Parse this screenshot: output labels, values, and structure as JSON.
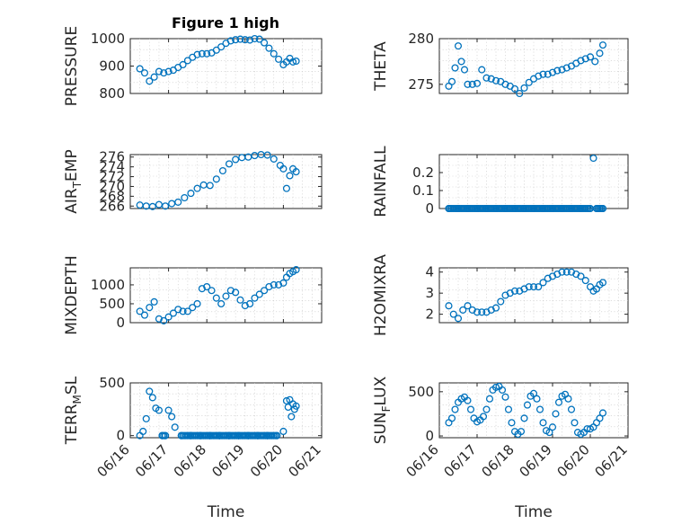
{
  "figure": {
    "title": "Figure 1 high"
  },
  "colors": {
    "marker": "#0072BD",
    "axis": "#262626",
    "grid": "#c9c9c9",
    "background": "#ffffff"
  },
  "chart_data": [
    {
      "type": "scatter",
      "title": "Figure 1 high",
      "ylabel": "PRESSURE",
      "xlabel": "",
      "xlim": [
        "06/16",
        "06/21"
      ],
      "ylim": [
        800,
        1000
      ],
      "yticks": [
        "800",
        "900",
        "1000"
      ],
      "xticks": [],
      "grid": true,
      "series": [
        {
          "x": [
            "06/16 06:00",
            "06/16 09:00",
            "06/16 12:00",
            "06/16 15:00",
            "06/16 18:00",
            "06/16 21:00",
            "06/17 00:00",
            "06/17 03:00",
            "06/17 06:00",
            "06/17 09:00",
            "06/17 12:00",
            "06/17 15:00",
            "06/17 18:00",
            "06/17 21:00",
            "06/18 00:00",
            "06/18 03:00",
            "06/18 06:00",
            "06/18 09:00",
            "06/18 12:00",
            "06/18 15:00",
            "06/18 18:00",
            "06/18 21:00",
            "06/19 00:00",
            "06/19 03:00",
            "06/19 06:00",
            "06/19 09:00",
            "06/19 12:00",
            "06/19 15:00",
            "06/19 18:00",
            "06/19 21:00",
            "06/20 00:00",
            "06/20 02:00",
            "06/20 04:00",
            "06/20 06:00",
            "06/20 08:00"
          ],
          "y": [
            890,
            875,
            845,
            860,
            880,
            875,
            880,
            885,
            895,
            905,
            920,
            932,
            942,
            945,
            945,
            948,
            958,
            970,
            983,
            992,
            996,
            998,
            996,
            995,
            1000,
            998,
            985,
            965,
            945,
            925,
            905,
            915,
            928,
            915,
            918
          ]
        }
      ]
    },
    {
      "type": "scatter",
      "ylabel": "THETA",
      "xlabel": "",
      "xlim": [
        "06/16",
        "06/21"
      ],
      "ylim": [
        274,
        280
      ],
      "yticks": [
        "275",
        "280"
      ],
      "xticks": [],
      "grid": true,
      "series": [
        {
          "x": [
            "06/16 06:00",
            "06/16 08:00",
            "06/16 10:00",
            "06/16 12:00",
            "06/16 14:00",
            "06/16 16:00",
            "06/16 18:00",
            "06/16 21:00",
            "06/17 00:00",
            "06/17 03:00",
            "06/17 06:00",
            "06/17 09:00",
            "06/17 12:00",
            "06/17 15:00",
            "06/17 18:00",
            "06/17 21:00",
            "06/18 00:00",
            "06/18 03:00",
            "06/18 06:00",
            "06/18 09:00",
            "06/18 12:00",
            "06/18 15:00",
            "06/18 18:00",
            "06/18 21:00",
            "06/19 00:00",
            "06/19 03:00",
            "06/19 06:00",
            "06/19 09:00",
            "06/19 12:00",
            "06/19 15:00",
            "06/19 18:00",
            "06/19 21:00",
            "06/20 00:00",
            "06/20 03:00",
            "06/20 06:00",
            "06/20 08:00"
          ],
          "y": [
            274.8,
            275.3,
            276.8,
            279.2,
            277.5,
            276.6,
            275.0,
            275.0,
            275.1,
            276.6,
            275.7,
            275.6,
            275.4,
            275.3,
            275.0,
            274.8,
            274.5,
            274.0,
            274.6,
            275.2,
            275.6,
            275.9,
            276.1,
            276.1,
            276.3,
            276.5,
            276.6,
            276.8,
            277.0,
            277.3,
            277.6,
            277.8,
            278.0,
            277.5,
            278.4,
            279.3
          ]
        }
      ]
    },
    {
      "type": "scatter",
      "ylabel": "AIR_TEMP",
      "xlabel": "",
      "xlim": [
        "06/16",
        "06/21"
      ],
      "ylim": [
        265.5,
        276.5
      ],
      "yticks": [
        "266",
        "268",
        "270",
        "272",
        "274",
        "276"
      ],
      "xticks": [],
      "grid": true,
      "series": [
        {
          "x": [
            "06/16 06:00",
            "06/16 10:00",
            "06/16 14:00",
            "06/16 18:00",
            "06/16 22:00",
            "06/17 02:00",
            "06/17 06:00",
            "06/17 10:00",
            "06/17 14:00",
            "06/17 18:00",
            "06/17 22:00",
            "06/18 02:00",
            "06/18 06:00",
            "06/18 10:00",
            "06/18 14:00",
            "06/18 18:00",
            "06/18 22:00",
            "06/19 02:00",
            "06/19 06:00",
            "06/19 10:00",
            "06/19 14:00",
            "06/19 18:00",
            "06/19 22:00",
            "06/20 00:00",
            "06/20 02:00",
            "06/20 04:00",
            "06/20 06:00",
            "06/20 08:00"
          ],
          "y": [
            266.2,
            266.0,
            265.9,
            266.3,
            266.0,
            266.5,
            266.8,
            267.7,
            268.6,
            269.6,
            270.3,
            270.2,
            271.5,
            273.2,
            274.6,
            275.5,
            275.9,
            276.0,
            276.3,
            276.5,
            276.4,
            275.6,
            274.3,
            273.6,
            269.6,
            272.2,
            273.6,
            273.0
          ]
        }
      ]
    },
    {
      "type": "scatter",
      "ylabel": "RAINFALL",
      "xlabel": "",
      "xlim": [
        "06/16",
        "06/21"
      ],
      "ylim": [
        0,
        0.3
      ],
      "yticks": [
        "0",
        "0.1",
        "0.2"
      ],
      "xticks": [],
      "grid": true,
      "series": [
        {
          "x": [
            "06/16 06:00",
            "06/16 12:00",
            "06/16 18:00",
            "06/17 00:00",
            "06/17 06:00",
            "06/17 12:00",
            "06/17 18:00",
            "06/18 00:00",
            "06/18 06:00",
            "06/18 12:00",
            "06/18 18:00",
            "06/19 00:00",
            "06/19 06:00",
            "06/19 12:00",
            "06/19 18:00",
            "06/20 00:00",
            "06/20 02:00",
            "06/20 04:00",
            "06/20 06:00",
            "06/20 08:00"
          ],
          "y": [
            0,
            0,
            0,
            0,
            0,
            0,
            0,
            0,
            0,
            0,
            0,
            0,
            0,
            0,
            0,
            0,
            0.28,
            0,
            0,
            0
          ]
        }
      ]
    },
    {
      "type": "scatter",
      "ylabel": "MIXDEPTH",
      "xlabel": "",
      "xlim": [
        "06/16",
        "06/21"
      ],
      "ylim": [
        0,
        1450
      ],
      "yticks": [
        "0",
        "500",
        "1000"
      ],
      "xticks": [],
      "grid": true,
      "series": [
        {
          "x": [
            "06/16 06:00",
            "06/16 09:00",
            "06/16 12:00",
            "06/16 15:00",
            "06/16 18:00",
            "06/16 21:00",
            "06/17 00:00",
            "06/17 03:00",
            "06/17 06:00",
            "06/17 09:00",
            "06/17 12:00",
            "06/17 15:00",
            "06/17 18:00",
            "06/17 21:00",
            "06/18 00:00",
            "06/18 03:00",
            "06/18 06:00",
            "06/18 09:00",
            "06/18 12:00",
            "06/18 15:00",
            "06/18 18:00",
            "06/18 21:00",
            "06/19 00:00",
            "06/19 03:00",
            "06/19 06:00",
            "06/19 09:00",
            "06/19 12:00",
            "06/19 15:00",
            "06/19 18:00",
            "06/19 21:00",
            "06/20 00:00",
            "06/20 02:00",
            "06/20 04:00",
            "06/20 06:00",
            "06/20 08:00"
          ],
          "y": [
            300,
            200,
            400,
            550,
            100,
            50,
            150,
            250,
            350,
            300,
            300,
            400,
            500,
            900,
            950,
            850,
            650,
            500,
            700,
            850,
            800,
            600,
            450,
            500,
            650,
            750,
            850,
            950,
            1000,
            1000,
            1050,
            1200,
            1300,
            1350,
            1400
          ]
        }
      ]
    },
    {
      "type": "scatter",
      "ylabel": "H2OMIXRA",
      "xlabel": "",
      "xlim": [
        "06/16",
        "06/21"
      ],
      "ylim": [
        1.6,
        4.2
      ],
      "yticks": [
        "2",
        "3",
        "4"
      ],
      "xticks": [],
      "grid": true,
      "series": [
        {
          "x": [
            "06/16 06:00",
            "06/16 09:00",
            "06/16 12:00",
            "06/16 15:00",
            "06/16 18:00",
            "06/16 21:00",
            "06/17 00:00",
            "06/17 03:00",
            "06/17 06:00",
            "06/17 09:00",
            "06/17 12:00",
            "06/17 15:00",
            "06/17 18:00",
            "06/17 21:00",
            "06/18 00:00",
            "06/18 03:00",
            "06/18 06:00",
            "06/18 09:00",
            "06/18 12:00",
            "06/18 15:00",
            "06/18 18:00",
            "06/18 21:00",
            "06/19 00:00",
            "06/19 03:00",
            "06/19 06:00",
            "06/19 09:00",
            "06/19 12:00",
            "06/19 15:00",
            "06/19 18:00",
            "06/19 21:00",
            "06/20 00:00",
            "06/20 02:00",
            "06/20 04:00",
            "06/20 06:00",
            "06/20 08:00"
          ],
          "y": [
            2.4,
            2.0,
            1.8,
            2.2,
            2.4,
            2.2,
            2.1,
            2.1,
            2.1,
            2.2,
            2.3,
            2.6,
            2.9,
            3.0,
            3.1,
            3.1,
            3.2,
            3.3,
            3.3,
            3.3,
            3.5,
            3.7,
            3.8,
            3.9,
            4.0,
            4.0,
            4.0,
            3.9,
            3.8,
            3.6,
            3.3,
            3.1,
            3.2,
            3.4,
            3.5
          ]
        }
      ]
    },
    {
      "type": "scatter",
      "ylabel": "TERR_MSL",
      "xlabel": "Time",
      "xlim": [
        "06/16",
        "06/21"
      ],
      "ylim": [
        -20,
        500
      ],
      "yticks": [
        "0",
        "500"
      ],
      "xticks": [
        "06/16",
        "06/17",
        "06/18",
        "06/19",
        "06/20",
        "06/21"
      ],
      "grid": true,
      "series": [
        {
          "x": [
            "06/16 06:00",
            "06/16 08:00",
            "06/16 10:00",
            "06/16 12:00",
            "06/16 14:00",
            "06/16 16:00",
            "06/16 18:00",
            "06/16 20:00",
            "06/16 22:00",
            "06/17 00:00",
            "06/17 02:00",
            "06/17 04:00",
            "06/17 08:00",
            "06/17 14:00",
            "06/17 20:00",
            "06/18 02:00",
            "06/18 08:00",
            "06/18 14:00",
            "06/18 20:00",
            "06/19 02:00",
            "06/19 08:00",
            "06/19 14:00",
            "06/19 20:00",
            "06/20 00:00",
            "06/20 02:00",
            "06/20 03:00",
            "06/20 04:00",
            "06/20 05:00",
            "06/20 06:00",
            "06/20 07:00",
            "06/20 08:00"
          ],
          "y": [
            0,
            40,
            160,
            420,
            360,
            260,
            240,
            0,
            0,
            240,
            180,
            80,
            0,
            0,
            0,
            0,
            0,
            0,
            0,
            0,
            0,
            0,
            0,
            40,
            330,
            270,
            340,
            180,
            300,
            250,
            280
          ]
        }
      ]
    },
    {
      "type": "scatter",
      "ylabel": "SUN_FLUX",
      "xlabel": "Time",
      "xlim": [
        "06/16",
        "06/21"
      ],
      "ylim": [
        -20,
        600
      ],
      "yticks": [
        "0",
        "500"
      ],
      "xticks": [
        "06/16",
        "06/17",
        "06/18",
        "06/19",
        "06/20",
        "06/21"
      ],
      "grid": true,
      "series": [
        {
          "x": [
            "06/16 06:00",
            "06/16 08:00",
            "06/16 10:00",
            "06/16 12:00",
            "06/16 14:00",
            "06/16 16:00",
            "06/16 18:00",
            "06/16 20:00",
            "06/16 22:00",
            "06/17 00:00",
            "06/17 02:00",
            "06/17 04:00",
            "06/17 06:00",
            "06/17 08:00",
            "06/17 10:00",
            "06/17 12:00",
            "06/17 14:00",
            "06/17 16:00",
            "06/17 18:00",
            "06/17 20:00",
            "06/17 22:00",
            "06/18 00:00",
            "06/18 02:00",
            "06/18 04:00",
            "06/18 06:00",
            "06/18 08:00",
            "06/18 10:00",
            "06/18 12:00",
            "06/18 14:00",
            "06/18 16:00",
            "06/18 18:00",
            "06/18 20:00",
            "06/18 22:00",
            "06/19 00:00",
            "06/19 02:00",
            "06/19 04:00",
            "06/19 06:00",
            "06/19 08:00",
            "06/19 10:00",
            "06/19 12:00",
            "06/19 14:00",
            "06/19 16:00",
            "06/19 18:00",
            "06/19 20:00",
            "06/19 22:00",
            "06/20 00:00",
            "06/20 02:00",
            "06/20 04:00",
            "06/20 06:00",
            "06/20 08:00"
          ],
          "y": [
            150,
            200,
            300,
            380,
            420,
            440,
            400,
            300,
            200,
            160,
            180,
            220,
            300,
            420,
            520,
            550,
            560,
            520,
            440,
            300,
            150,
            50,
            20,
            50,
            200,
            350,
            450,
            480,
            420,
            300,
            150,
            60,
            40,
            100,
            250,
            380,
            450,
            470,
            420,
            300,
            150,
            40,
            20,
            40,
            80,
            80,
            100,
            150,
            200,
            260
          ]
        }
      ]
    }
  ]
}
